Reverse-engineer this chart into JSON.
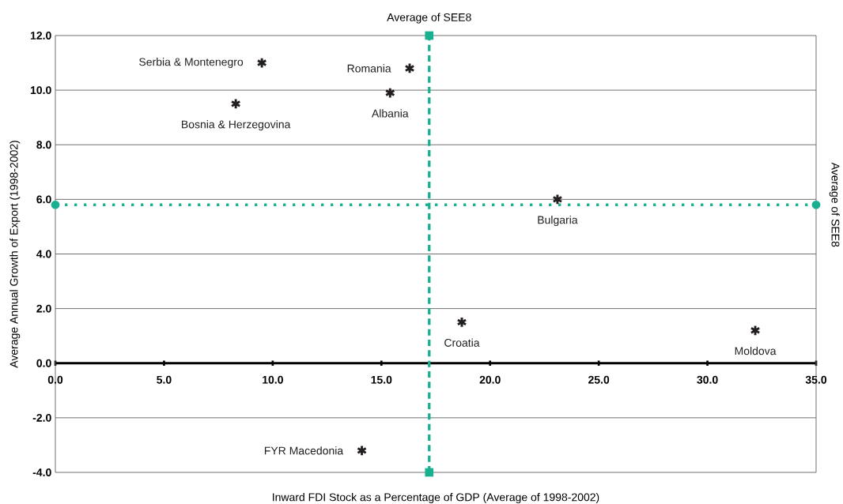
{
  "chart_data": {
    "type": "scatter",
    "xlabel": "Inward FDI Stock as a Percentage of GDP (Average of 1998-2002)",
    "ylabel": "Average Annual Growth of Export (1998-2002)",
    "x": [
      9.5,
      16.3,
      15.4,
      8.3,
      23.1,
      18.7,
      32.2,
      14.1
    ],
    "values": [
      11.0,
      10.8,
      9.9,
      9.5,
      6.0,
      1.5,
      1.2,
      -3.2
    ],
    "color": "#231f20",
    "marker": "cross",
    "annotations": [
      {
        "text": "Serbia & Montenegro",
        "x": 9.5,
        "y": 11.0
      },
      {
        "text": "Romania",
        "x": 16.3,
        "y": 10.8
      },
      {
        "text": "Albania",
        "x": 15.4,
        "y": 9.9
      },
      {
        "text": "Bosnia & Herzegovina",
        "x": 8.3,
        "y": 9.5
      },
      {
        "text": "Bulgaria",
        "x": 23.1,
        "y": 6.0
      },
      {
        "text": "Croatia",
        "x": 18.7,
        "y": 1.5
      },
      {
        "text": "Moldova",
        "x": 32.2,
        "y": 1.2
      },
      {
        "text": "FYR Macedonia",
        "x": 14.1,
        "y": -3.2
      }
    ],
    "ref_lines": [
      {
        "axis": "x",
        "value": 17.2,
        "label": "Average of SEE8",
        "color": "#19b092",
        "line_style": "dashed"
      },
      {
        "axis": "y",
        "value": 5.8,
        "label": "Average of SEE8",
        "color": "#19b092",
        "line_style": "dotted"
      }
    ],
    "xlim": [
      0,
      35
    ],
    "ylim": [
      -4,
      12
    ],
    "xticks": [
      {
        "value": 0,
        "label": "0.0"
      },
      {
        "value": 5,
        "label": "5.0"
      },
      {
        "value": 10,
        "label": "10.0"
      },
      {
        "value": 15,
        "label": "15.0"
      },
      {
        "value": 20,
        "label": "20.0"
      },
      {
        "value": 25,
        "label": "25.0"
      },
      {
        "value": 30,
        "label": "30.0"
      },
      {
        "value": 35,
        "label": "35.0"
      }
    ],
    "yticks": [
      {
        "value": -4,
        "label": "-4.0"
      },
      {
        "value": -2,
        "label": "-2.0"
      },
      {
        "value": 0,
        "label": "0.0"
      },
      {
        "value": 2,
        "label": "2.0"
      },
      {
        "value": 4,
        "label": "4.0"
      },
      {
        "value": 6,
        "label": "6.0"
      },
      {
        "value": 8,
        "label": "8.0"
      },
      {
        "value": 10,
        "label": "10.0"
      },
      {
        "value": 12,
        "label": "12.0"
      }
    ],
    "grid": "y"
  }
}
